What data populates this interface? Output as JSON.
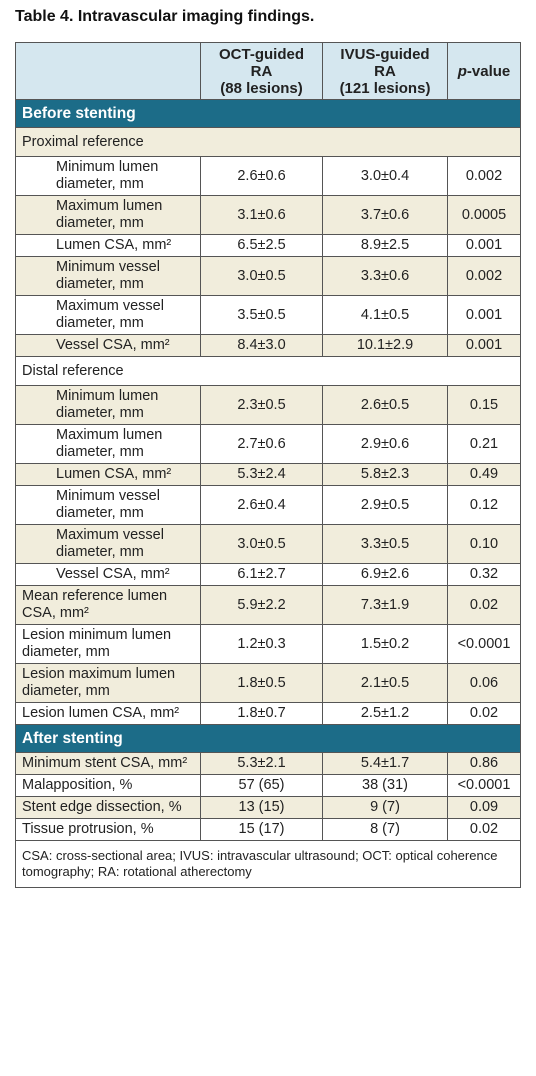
{
  "title": "Table 4. Intravascular imaging findings.",
  "header": [
    [
      "OCT-guided RA",
      "(88 lesions)"
    ],
    [
      "IVUS-guided RA",
      "(121 lesions)"
    ],
    {
      "italic": "p",
      "text": "-value"
    }
  ],
  "sections": [
    {
      "title": "Before stenting",
      "rows": [
        {
          "label": "Proximal reference",
          "subrows": [
            {
              "label": "Minimum lumen diameter, mm",
              "values": [
                "2.6±0.6",
                "3.0±0.4",
                "0.002"
              ]
            },
            {
              "label": "Maximum lumen diameter, mm",
              "values": [
                "3.1±0.6",
                "3.7±0.6",
                "0.0005"
              ]
            },
            {
              "label": "Lumen CSA, mm²",
              "values": [
                "6.5±2.5",
                "8.9±2.5",
                "0.001"
              ]
            },
            {
              "label": "Minimum vessel diameter, mm",
              "values": [
                "3.0±0.5",
                "3.3±0.6",
                "0.002"
              ]
            },
            {
              "label": "Maximum vessel diameter, mm",
              "values": [
                "3.5±0.5",
                "4.1±0.5",
                "0.001"
              ]
            },
            {
              "label": "Vessel CSA, mm²",
              "values": [
                "8.4±3.0",
                "10.1±2.9",
                "0.001"
              ]
            }
          ]
        },
        {
          "label": "Distal reference",
          "subrows": [
            {
              "label": "Minimum lumen diameter, mm",
              "values": [
                "2.3±0.5",
                "2.6±0.5",
                "0.15"
              ]
            },
            {
              "label": "Maximum lumen diameter, mm",
              "values": [
                "2.7±0.6",
                "2.9±0.6",
                "0.21"
              ]
            },
            {
              "label": "Lumen CSA, mm²",
              "values": [
                "5.3±2.4",
                "5.8±2.3",
                "0.49"
              ]
            },
            {
              "label": "Minimum vessel diameter, mm",
              "values": [
                "2.6±0.4",
                "2.9±0.5",
                "0.12"
              ]
            },
            {
              "label": "Maximum vessel diameter, mm",
              "values": [
                "3.0±0.5",
                "3.3±0.5",
                "0.10"
              ]
            },
            {
              "label": "Vessel CSA, mm²",
              "values": [
                "6.1±2.7",
                "6.9±2.6",
                "0.32"
              ]
            }
          ]
        },
        {
          "label": "Mean reference lumen CSA, mm²",
          "values": [
            "5.9±2.2",
            "7.3±1.9",
            "0.02"
          ]
        },
        {
          "label": "Lesion minimum lumen diameter, mm",
          "values": [
            "1.2±0.3",
            "1.5±0.2",
            "<0.0001"
          ]
        },
        {
          "label": "Lesion maximum lumen diameter, mm",
          "values": [
            "1.8±0.5",
            "2.1±0.5",
            "0.06"
          ]
        },
        {
          "label": "Lesion lumen CSA, mm²",
          "values": [
            "1.8±0.7",
            "2.5±1.2",
            "0.02"
          ]
        }
      ]
    },
    {
      "title": "After stenting",
      "rows": [
        {
          "label": "Minimum stent CSA, mm²",
          "values": [
            "5.3±2.1",
            "5.4±1.7",
            "0.86"
          ]
        },
        {
          "label": "Malapposition, %",
          "values": [
            "57 (65)",
            "38 (31)",
            "<0.0001"
          ]
        },
        {
          "label": "Stent edge dissection, %",
          "values": [
            "13 (15)",
            "9 (7)",
            "0.09"
          ]
        },
        {
          "label": "Tissue protrusion, %",
          "values": [
            "15 (17)",
            "8 (7)",
            "0.02"
          ]
        }
      ]
    }
  ],
  "footnote": "CSA: cross-sectional area; IVUS: intravascular ultrasound; OCT: optical coherence tomography; RA: rotational atherectomy"
}
